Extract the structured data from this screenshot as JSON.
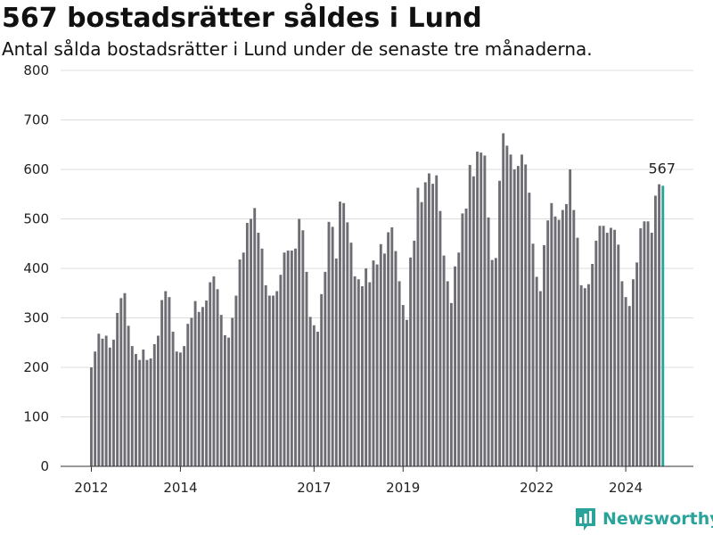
{
  "header": {
    "title": "567 bostadsrätter såldes i Lund",
    "subtitle": "Antal sålda bostadsrätter i Lund under de senaste tre månaderna."
  },
  "brand": {
    "name": "Newsworthy",
    "icon": "newsworthy-logo-icon",
    "color": "#2aa39a"
  },
  "chart_data": {
    "type": "bar",
    "title": "567 bostadsrätter såldes i Lund",
    "subtitle": "Antal sålda bostadsrätter i Lund under de senaste tre månaderna.",
    "xlabel": "",
    "ylabel": "",
    "ylim": [
      0,
      800
    ],
    "yticks": [
      0,
      100,
      200,
      300,
      400,
      500,
      600,
      700,
      800
    ],
    "y_tick_labels": [
      "0",
      "100",
      "200",
      "300",
      "400",
      "500",
      "600",
      "700",
      "800"
    ],
    "x_tick_labels": [
      {
        "label": "2012",
        "index": 0
      },
      {
        "label": "2014",
        "index": 24
      },
      {
        "label": "2017",
        "index": 60
      },
      {
        "label": "2019",
        "index": 84
      },
      {
        "label": "2022",
        "index": 120
      },
      {
        "label": "2024",
        "index": 144
      }
    ],
    "grid": true,
    "bar_color": "#6e6d73",
    "highlight_color": "#2aa39a",
    "highlight_index": 154,
    "annotation": "567",
    "values": [
      200,
      232,
      268,
      258,
      264,
      240,
      256,
      310,
      340,
      350,
      284,
      243,
      227,
      215,
      236,
      215,
      218,
      247,
      264,
      336,
      354,
      342,
      272,
      232,
      230,
      243,
      288,
      300,
      334,
      312,
      322,
      335,
      372,
      384,
      358,
      306,
      265,
      260,
      300,
      345,
      418,
      432,
      492,
      500,
      522,
      472,
      440,
      366,
      345,
      345,
      354,
      387,
      432,
      436,
      436,
      440,
      500,
      477,
      393,
      302,
      285,
      272,
      348,
      393,
      494,
      484,
      420,
      535,
      532,
      493,
      452,
      384,
      378,
      364,
      400,
      372,
      416,
      408,
      449,
      430,
      473,
      483,
      435,
      374,
      326,
      296,
      422,
      456,
      563,
      534,
      574,
      592,
      571,
      588,
      516,
      426,
      374,
      330,
      404,
      432,
      511,
      521,
      609,
      586,
      636,
      634,
      628,
      503,
      417,
      421,
      577,
      673,
      648,
      630,
      600,
      607,
      630,
      610,
      553,
      450,
      383,
      354,
      447,
      497,
      532,
      505,
      498,
      518,
      530,
      600,
      518,
      462,
      366,
      360,
      368,
      409,
      456,
      486,
      486,
      472,
      482,
      478,
      448,
      374,
      342,
      324,
      378,
      412,
      481,
      495,
      495,
      472,
      547,
      570,
      567
    ]
  }
}
